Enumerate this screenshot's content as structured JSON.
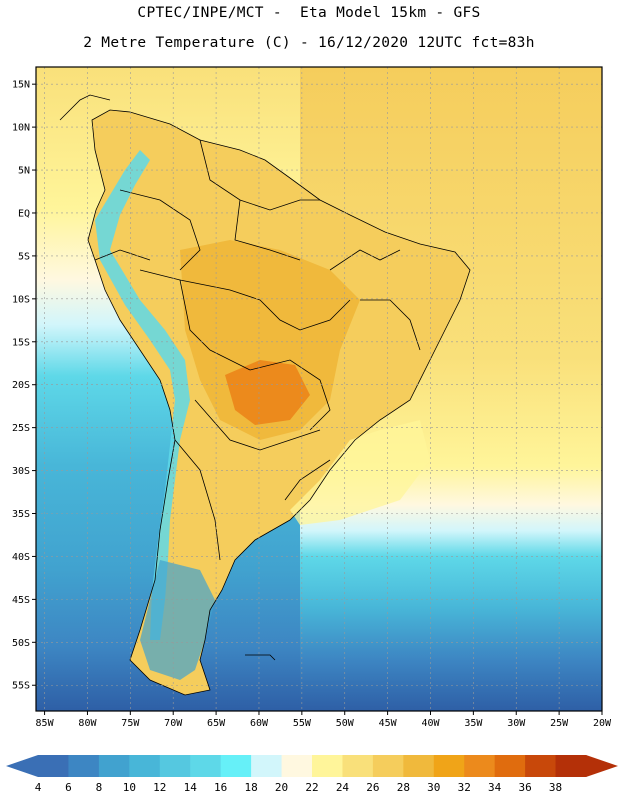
{
  "title_line1": "CPTEC/INPE/MCT -  Eta Model 15km - GFS",
  "title_line2": "2 Metre Temperature (C) - 16/12/2020 12UTC fct=83h",
  "lat_labels": [
    {
      "lat": 15,
      "text": "15N"
    },
    {
      "lat": 10,
      "text": "10N"
    },
    {
      "lat": 5,
      "text": "5N"
    },
    {
      "lat": 0,
      "text": "EQ"
    },
    {
      "lat": -5,
      "text": "5S"
    },
    {
      "lat": -10,
      "text": "10S"
    },
    {
      "lat": -15,
      "text": "15S"
    },
    {
      "lat": -20,
      "text": "20S"
    },
    {
      "lat": -25,
      "text": "25S"
    },
    {
      "lat": -30,
      "text": "30S"
    },
    {
      "lat": -35,
      "text": "35S"
    },
    {
      "lat": -40,
      "text": "40S"
    },
    {
      "lat": -45,
      "text": "45S"
    },
    {
      "lat": -50,
      "text": "50S"
    },
    {
      "lat": -55,
      "text": "55S"
    }
  ],
  "lon_labels": [
    {
      "lon": -85,
      "text": "85W"
    },
    {
      "lon": -80,
      "text": "80W"
    },
    {
      "lon": -75,
      "text": "75W"
    },
    {
      "lon": -70,
      "text": "70W"
    },
    {
      "lon": -65,
      "text": "65W"
    },
    {
      "lon": -60,
      "text": "60W"
    },
    {
      "lon": -55,
      "text": "55W"
    },
    {
      "lon": -50,
      "text": "50W"
    },
    {
      "lon": -45,
      "text": "45W"
    },
    {
      "lon": -40,
      "text": "40W"
    },
    {
      "lon": -35,
      "text": "35W"
    },
    {
      "lon": -30,
      "text": "30W"
    },
    {
      "lon": -25,
      "text": "25W"
    },
    {
      "lon": -20,
      "text": "20W"
    }
  ],
  "colorbar": {
    "ticks": [
      "4",
      "6",
      "8",
      "10",
      "12",
      "14",
      "16",
      "18",
      "20",
      "22",
      "24",
      "26",
      "28",
      "30",
      "32",
      "34",
      "36",
      "38"
    ],
    "colors": [
      "#3a6fb5",
      "#3d86c3",
      "#41a2cf",
      "#48b6d8",
      "#55c8e0",
      "#5ed8e8",
      "#66f0f8",
      "#d2f6fb",
      "#fff8e0",
      "#fff59a",
      "#f9e07a",
      "#f5cd5c",
      "#f0b93c",
      "#f0a418",
      "#ec8a1c",
      "#e06c0e",
      "#c8480a",
      "#b43008"
    ],
    "low_color": "#3a6fb5",
    "high_color": "#b43008"
  },
  "map": {
    "lon_range": [
      -86,
      -20
    ],
    "lat_range": [
      -58,
      17
    ],
    "ocean_colors": [
      "#48b6d8",
      "#55c8e0",
      "#3d86c3",
      "#2e5fa6"
    ],
    "land_color": "#f5cd5c",
    "hot_color": "#e6a035"
  }
}
